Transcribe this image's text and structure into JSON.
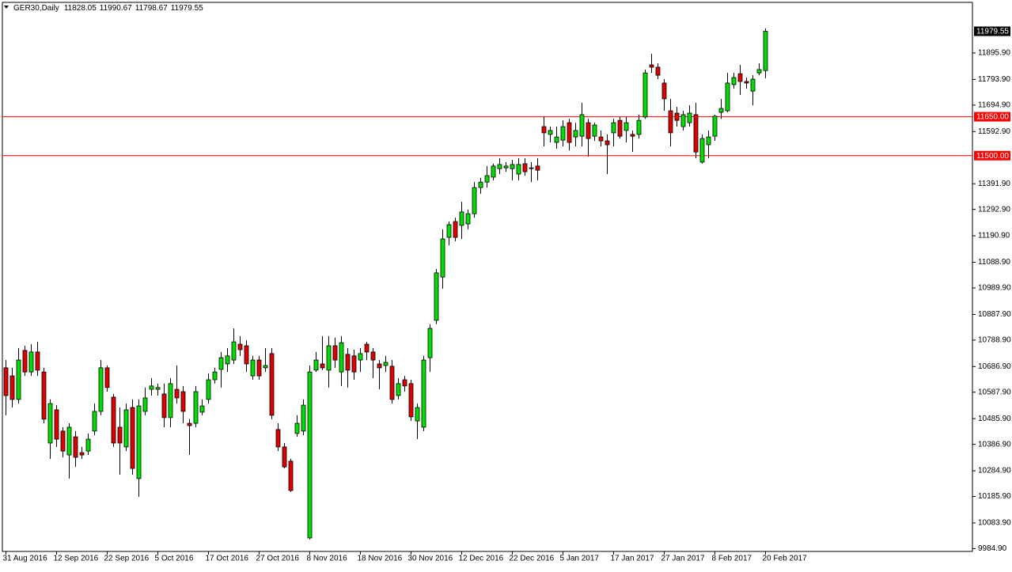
{
  "chart_data": {
    "type": "candlestick",
    "title": "GER30,Daily",
    "categories": [
      "31 Aug 2016",
      null,
      null,
      null,
      null,
      null,
      null,
      null,
      "12 Sep 2016",
      null,
      null,
      null,
      null,
      null,
      null,
      null,
      "22 Sep 2016",
      null,
      null,
      null,
      null,
      null,
      null,
      null,
      "5 Oct 2016",
      null,
      null,
      null,
      null,
      null,
      null,
      null,
      "17 Oct 2016",
      null,
      null,
      null,
      null,
      null,
      null,
      null,
      "27 Oct 2016",
      null,
      null,
      null,
      null,
      null,
      null,
      null,
      "8 Nov 2016",
      null,
      null,
      null,
      null,
      null,
      null,
      null,
      "18 Nov 2016",
      null,
      null,
      null,
      null,
      null,
      null,
      null,
      "30 Nov 2016",
      null,
      null,
      null,
      null,
      null,
      null,
      null,
      "12 Dec 2016",
      null,
      null,
      null,
      null,
      null,
      null,
      null,
      "22 Dec 2016",
      null,
      null,
      null,
      null,
      null,
      null,
      null,
      "5 Jan 2017",
      null,
      null,
      null,
      null,
      null,
      null,
      null,
      "17 Jan 2017",
      null,
      null,
      null,
      null,
      null,
      null,
      null,
      "27 Jan 2017",
      null,
      null,
      null,
      null,
      null,
      null,
      null,
      "8 Feb 2017",
      null,
      null,
      null,
      null,
      null,
      null,
      null,
      "20 Feb 2017"
    ],
    "open": [
      10682,
      10651,
      10560,
      10749,
      10666,
      10743,
      10666,
      10392,
      10520,
      10438,
      10346,
      10416,
      10355,
      10361,
      10438,
      10514,
      10682,
      10569,
      10453,
      10377,
      10529,
      10255,
      10514,
      10599,
      10599,
      10581,
      10490,
      10599,
      10590,
      10468,
      10468,
      10511,
      10560,
      10636,
      10676,
      10697,
      10712,
      10773,
      10767,
      10651,
      10712,
      10682,
      10737,
      10444,
      10377,
      10322,
      10429,
      10438,
      10026,
      10673,
      10697,
      10673,
      10767,
      10666,
      10734,
      10728,
      10712,
      10773,
      10743,
      10697,
      10691,
      10688,
      10575,
      10636,
      10621,
      10477,
      10453,
      10721,
      10865,
      11032,
      11185,
      11246,
      11231,
      11237,
      11276,
      11377,
      11398,
      11417,
      11450,
      11453,
      11450,
      11429,
      11469,
      11450,
      11460,
      11612,
      11582,
      11551,
      11560,
      11627,
      11572,
      11575,
      11627,
      11575,
      11572,
      11557,
      11588,
      11636,
      11597,
      11582,
      11582,
      11649,
      11850,
      11841,
      11780,
      11673,
      11664,
      11612,
      11627,
      11658,
      11475,
      11542,
      11575,
      11667,
      11673,
      11774,
      11816,
      11786,
      11749,
      11819,
      11828.05
    ],
    "high": [
      10712,
      10682,
      10758,
      10767,
      10773,
      10782,
      10682,
      10560,
      10538,
      10453,
      10468,
      10438,
      10377,
      10429,
      10544,
      10712,
      10691,
      10581,
      10529,
      10544,
      10560,
      10560,
      10606,
      10642,
      10621,
      10621,
      10642,
      10691,
      10612,
      10484,
      10612,
      10560,
      10660,
      10682,
      10743,
      10758,
      10834,
      10804,
      10788,
      10728,
      10728,
      10758,
      10758,
      10468,
      10392,
      10331,
      10499,
      10560,
      10691,
      10743,
      10804,
      10804,
      10798,
      10804,
      10758,
      10752,
      10758,
      10782,
      10758,
      10712,
      10728,
      10712,
      10642,
      10651,
      10636,
      10544,
      10728,
      10850,
      11063,
      11216,
      11246,
      11261,
      11322,
      11292,
      11398,
      11414,
      11460,
      11469,
      11490,
      11475,
      11484,
      11490,
      11490,
      11475,
      11490,
      11652,
      11612,
      11612,
      11636,
      11642,
      11627,
      11704,
      11642,
      11627,
      11597,
      11582,
      11642,
      11649,
      11649,
      11597,
      11658,
      11832,
      11893,
      11856,
      11795,
      11719,
      11688,
      11673,
      11694,
      11704,
      11582,
      11597,
      11658,
      11719,
      11819,
      11819,
      11850,
      11801,
      11810,
      11856,
      11990.67
    ],
    "low": [
      10499,
      10529,
      10544,
      10651,
      10651,
      10651,
      10468,
      10331,
      10377,
      10337,
      10255,
      10300,
      10331,
      10346,
      10422,
      10499,
      10590,
      10377,
      10270,
      10361,
      10270,
      10185,
      10499,
      10575,
      10575,
      10453,
      10453,
      10544,
      10468,
      10346,
      10453,
      10499,
      10544,
      10621,
      10606,
      10666,
      10697,
      10728,
      10666,
      10636,
      10636,
      10666,
      10484,
      10361,
      10294,
      10203,
      10416,
      10422,
      10020,
      10666,
      10673,
      10606,
      10682,
      10612,
      10606,
      10636,
      10666,
      10712,
      10642,
      10599,
      10666,
      10544,
      10560,
      10590,
      10477,
      10407,
      10438,
      10666,
      10850,
      10987,
      11154,
      11170,
      11179,
      11216,
      11261,
      11353,
      11377,
      11405,
      11429,
      11438,
      11405,
      11405,
      11423,
      11398,
      11405,
      11536,
      11551,
      11527,
      11536,
      11520,
      11536,
      11536,
      11496,
      11557,
      11536,
      11429,
      11536,
      11566,
      11551,
      11514,
      11566,
      11642,
      11819,
      11795,
      11673,
      11536,
      11612,
      11597,
      11612,
      11490,
      11469,
      11490,
      11557,
      11642,
      11667,
      11758,
      11734,
      11758,
      11694,
      11810,
      11798.67
    ],
    "close": [
      10575,
      10560,
      10712,
      10666,
      10743,
      10673,
      10484,
      10544,
      10407,
      10361,
      10453,
      10337,
      10346,
      10407,
      10514,
      10682,
      10606,
      10392,
      10392,
      10520,
      10294,
      10535,
      10566,
      10612,
      10606,
      10490,
      10621,
      10566,
      10514,
      10459,
      10590,
      10535,
      10636,
      10666,
      10721,
      10728,
      10782,
      10752,
      10697,
      10712,
      10651,
      10691,
      10499,
      10377,
      10300,
      10209,
      10468,
      10538,
      10666,
      10712,
      10682,
      10767,
      10712,
      10779,
      10673,
      10666,
      10737,
      10743,
      10712,
      10682,
      10703,
      10560,
      10621,
      10612,
      10493,
      10529,
      10712,
      10834,
      11048,
      11179,
      11234,
      11185,
      11283,
      11276,
      11377,
      11398,
      11423,
      11460,
      11466,
      11460,
      11466,
      11466,
      11438,
      11453,
      11444,
      11588,
      11597,
      11572,
      11612,
      11551,
      11597,
      11658,
      11566,
      11618,
      11557,
      11542,
      11627,
      11575,
      11627,
      11575,
      11636,
      11819,
      11841,
      11810,
      11719,
      11588,
      11636,
      11658,
      11664,
      11514,
      11566,
      11572,
      11652,
      11682,
      11780,
      11801,
      11786,
      11780,
      11795,
      11832,
      11979.55
    ],
    "up_color": "#00e000",
    "down_color": "#e00000",
    "ylim": [
      9974,
      12091
    ],
    "yticks": [
      {
        "value": 9984.9,
        "label": "9984.90"
      },
      {
        "value": 10083.9,
        "label": "10083.90"
      },
      {
        "value": 10185.9,
        "label": "10185.90"
      },
      {
        "value": 10284.9,
        "label": "10284.90"
      },
      {
        "value": 10386.9,
        "label": "10386.90"
      },
      {
        "value": 10485.9,
        "label": "10485.90"
      },
      {
        "value": 10587.9,
        "label": "10587.90"
      },
      {
        "value": 10686.9,
        "label": "10686.90"
      },
      {
        "value": 10788.9,
        "label": "10788.90"
      },
      {
        "value": 10887.9,
        "label": "10887.90"
      },
      {
        "value": 10989.9,
        "label": "10989.90"
      },
      {
        "value": 11088.9,
        "label": "11088.90"
      },
      {
        "value": 11190.9,
        "label": "11190.90"
      },
      {
        "value": 11292.9,
        "label": "11292.90"
      },
      {
        "value": 11391.9,
        "label": "11391.90"
      },
      {
        "value": 11592.9,
        "label": "11592.90"
      },
      {
        "value": 11694.9,
        "label": "11694.90"
      },
      {
        "value": 11793.9,
        "label": "11793.90"
      },
      {
        "value": 11895.9,
        "label": "11895.90"
      }
    ],
    "hlines": [
      {
        "value": 11650,
        "label": "11650.00",
        "color": "#ff0000"
      },
      {
        "value": 11500,
        "label": "11500.00",
        "color": "#ff0000"
      }
    ]
  }
}
